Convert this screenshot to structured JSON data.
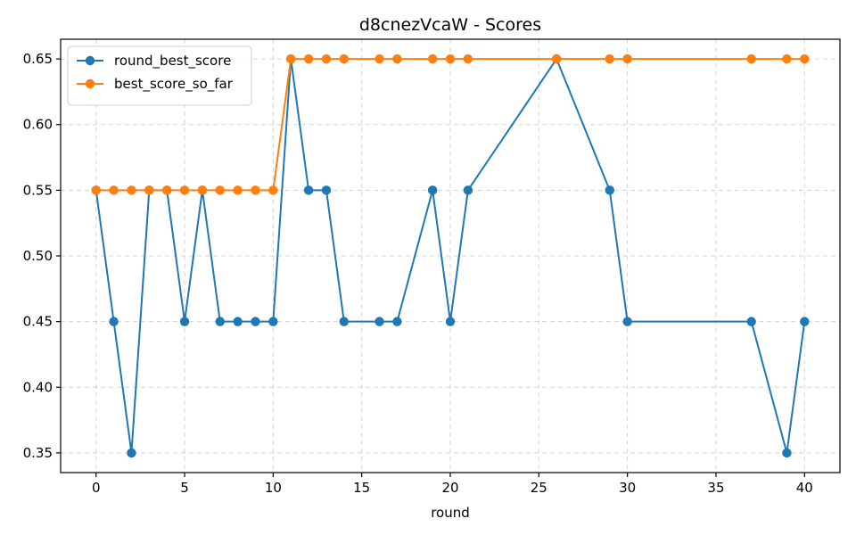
{
  "chart_data": {
    "type": "line",
    "title": "d8cnezVcaW - Scores",
    "xlabel": "round",
    "ylabel": "",
    "xlim": [
      -2,
      42
    ],
    "ylim": [
      0.335,
      0.665
    ],
    "xticks": [
      0,
      5,
      10,
      15,
      20,
      25,
      30,
      35,
      40
    ],
    "yticks": [
      0.35,
      0.4,
      0.45,
      0.5,
      0.55,
      0.6,
      0.65
    ],
    "xtick_labels": [
      "0",
      "5",
      "10",
      "15",
      "20",
      "25",
      "30",
      "35",
      "40"
    ],
    "ytick_labels": [
      "0.35",
      "0.40",
      "0.45",
      "0.50",
      "0.55",
      "0.60",
      "0.65"
    ],
    "grid": true,
    "legend_position": "top-left",
    "x": [
      0,
      1,
      2,
      3,
      4,
      5,
      6,
      7,
      8,
      9,
      10,
      11,
      12,
      13,
      14,
      16,
      17,
      19,
      20,
      21,
      26,
      29,
      30,
      37,
      39,
      40
    ],
    "series": [
      {
        "name": "round_best_score",
        "color": "#1f77b4",
        "values": [
          0.55,
          0.45,
          0.35,
          0.55,
          0.55,
          0.45,
          0.55,
          0.45,
          0.45,
          0.45,
          0.45,
          0.65,
          0.55,
          0.55,
          0.45,
          0.45,
          0.45,
          0.55,
          0.45,
          0.55,
          0.65,
          0.55,
          0.45,
          0.45,
          0.35,
          0.45
        ]
      },
      {
        "name": "best_score_so_far",
        "color": "#ff7f0e",
        "values": [
          0.55,
          0.55,
          0.55,
          0.55,
          0.55,
          0.55,
          0.55,
          0.55,
          0.55,
          0.55,
          0.55,
          0.65,
          0.65,
          0.65,
          0.65,
          0.65,
          0.65,
          0.65,
          0.65,
          0.65,
          0.65,
          0.65,
          0.65,
          0.65,
          0.65,
          0.65
        ]
      }
    ]
  }
}
